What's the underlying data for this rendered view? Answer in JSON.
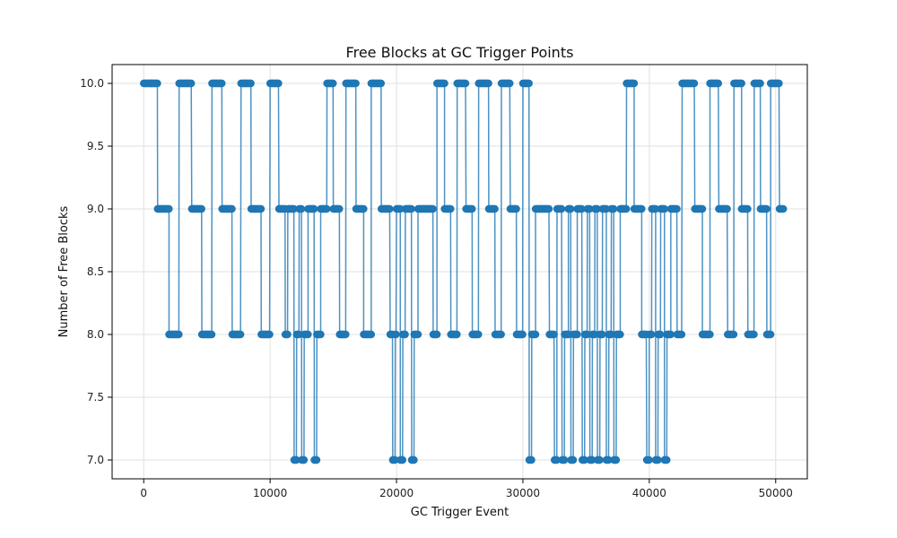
{
  "chart_data": {
    "type": "line",
    "title": "Free Blocks at GC Trigger Points",
    "xlabel": "GC Trigger Event",
    "ylabel": "Number of Free Blocks",
    "xlim": [
      -2500,
      52500
    ],
    "ylim": [
      6.85,
      10.15
    ],
    "xticks": [
      0,
      10000,
      20000,
      30000,
      40000,
      50000
    ],
    "yticks": [
      7.0,
      7.5,
      8.0,
      8.5,
      9.0,
      9.5,
      10.0
    ],
    "grid": true,
    "legend": "none",
    "colors": {
      "series": "#1f77b4",
      "grid": "#e0e0e0",
      "axis": "#000000"
    },
    "series": [
      {
        "marker": "circle",
        "levels": [
          [
            0,
            10
          ],
          [
            600,
            10
          ],
          [
            1100,
            9
          ],
          [
            2000,
            8
          ],
          [
            2800,
            10
          ],
          [
            3800,
            9
          ],
          [
            4600,
            8
          ],
          [
            5400,
            10
          ],
          [
            6200,
            9
          ],
          [
            7000,
            8
          ],
          [
            7700,
            10
          ],
          [
            8500,
            9
          ],
          [
            9300,
            8
          ],
          [
            10000,
            10
          ],
          [
            10700,
            9
          ],
          [
            11200,
            8
          ],
          [
            11400,
            9
          ],
          [
            11900,
            7
          ],
          [
            12100,
            8
          ],
          [
            12300,
            9
          ],
          [
            12500,
            7
          ],
          [
            12700,
            8
          ],
          [
            13000,
            9
          ],
          [
            13500,
            7
          ],
          [
            13700,
            8
          ],
          [
            14000,
            9
          ],
          [
            14500,
            10
          ],
          [
            15000,
            9
          ],
          [
            15500,
            8
          ],
          [
            16000,
            10
          ],
          [
            16800,
            9
          ],
          [
            17400,
            8
          ],
          [
            18000,
            10
          ],
          [
            18800,
            9
          ],
          [
            19500,
            8
          ],
          [
            19700,
            7
          ],
          [
            19900,
            8
          ],
          [
            20000,
            9
          ],
          [
            20300,
            7
          ],
          [
            20500,
            8
          ],
          [
            20700,
            9
          ],
          [
            21200,
            7
          ],
          [
            21400,
            8
          ],
          [
            21700,
            9
          ],
          [
            22400,
            9
          ],
          [
            22900,
            8
          ],
          [
            23200,
            10
          ],
          [
            23800,
            9
          ],
          [
            24300,
            8
          ],
          [
            24800,
            10
          ],
          [
            25500,
            9
          ],
          [
            26000,
            8
          ],
          [
            26500,
            10
          ],
          [
            27300,
            9
          ],
          [
            27800,
            8
          ],
          [
            28300,
            10
          ],
          [
            29000,
            9
          ],
          [
            29500,
            8
          ],
          [
            30000,
            10
          ],
          [
            30500,
            7
          ],
          [
            30700,
            8
          ],
          [
            31000,
            9
          ],
          [
            31700,
            9
          ],
          [
            32100,
            8
          ],
          [
            32500,
            7
          ],
          [
            32700,
            9
          ],
          [
            33100,
            7
          ],
          [
            33300,
            8
          ],
          [
            33600,
            9
          ],
          [
            33800,
            7
          ],
          [
            34000,
            8
          ],
          [
            34300,
            9
          ],
          [
            34700,
            7
          ],
          [
            34900,
            8
          ],
          [
            35100,
            9
          ],
          [
            35300,
            7
          ],
          [
            35500,
            8
          ],
          [
            35700,
            9
          ],
          [
            35900,
            7
          ],
          [
            36100,
            8
          ],
          [
            36300,
            9
          ],
          [
            36600,
            7
          ],
          [
            36800,
            8
          ],
          [
            37000,
            9
          ],
          [
            37200,
            7
          ],
          [
            37400,
            8
          ],
          [
            37700,
            9
          ],
          [
            38200,
            10
          ],
          [
            38800,
            9
          ],
          [
            39400,
            8
          ],
          [
            39800,
            7
          ],
          [
            40000,
            8
          ],
          [
            40200,
            9
          ],
          [
            40500,
            7
          ],
          [
            40700,
            8
          ],
          [
            40900,
            9
          ],
          [
            41200,
            7
          ],
          [
            41400,
            8
          ],
          [
            41700,
            9
          ],
          [
            42200,
            8
          ],
          [
            42600,
            10
          ],
          [
            43600,
            9
          ],
          [
            44200,
            8
          ],
          [
            44800,
            10
          ],
          [
            45500,
            9
          ],
          [
            46200,
            8
          ],
          [
            46700,
            10
          ],
          [
            47300,
            9
          ],
          [
            47800,
            8
          ],
          [
            48300,
            10
          ],
          [
            48800,
            9
          ],
          [
            49300,
            8
          ],
          [
            49600,
            10
          ],
          [
            50300,
            9
          ]
        ]
      }
    ]
  }
}
